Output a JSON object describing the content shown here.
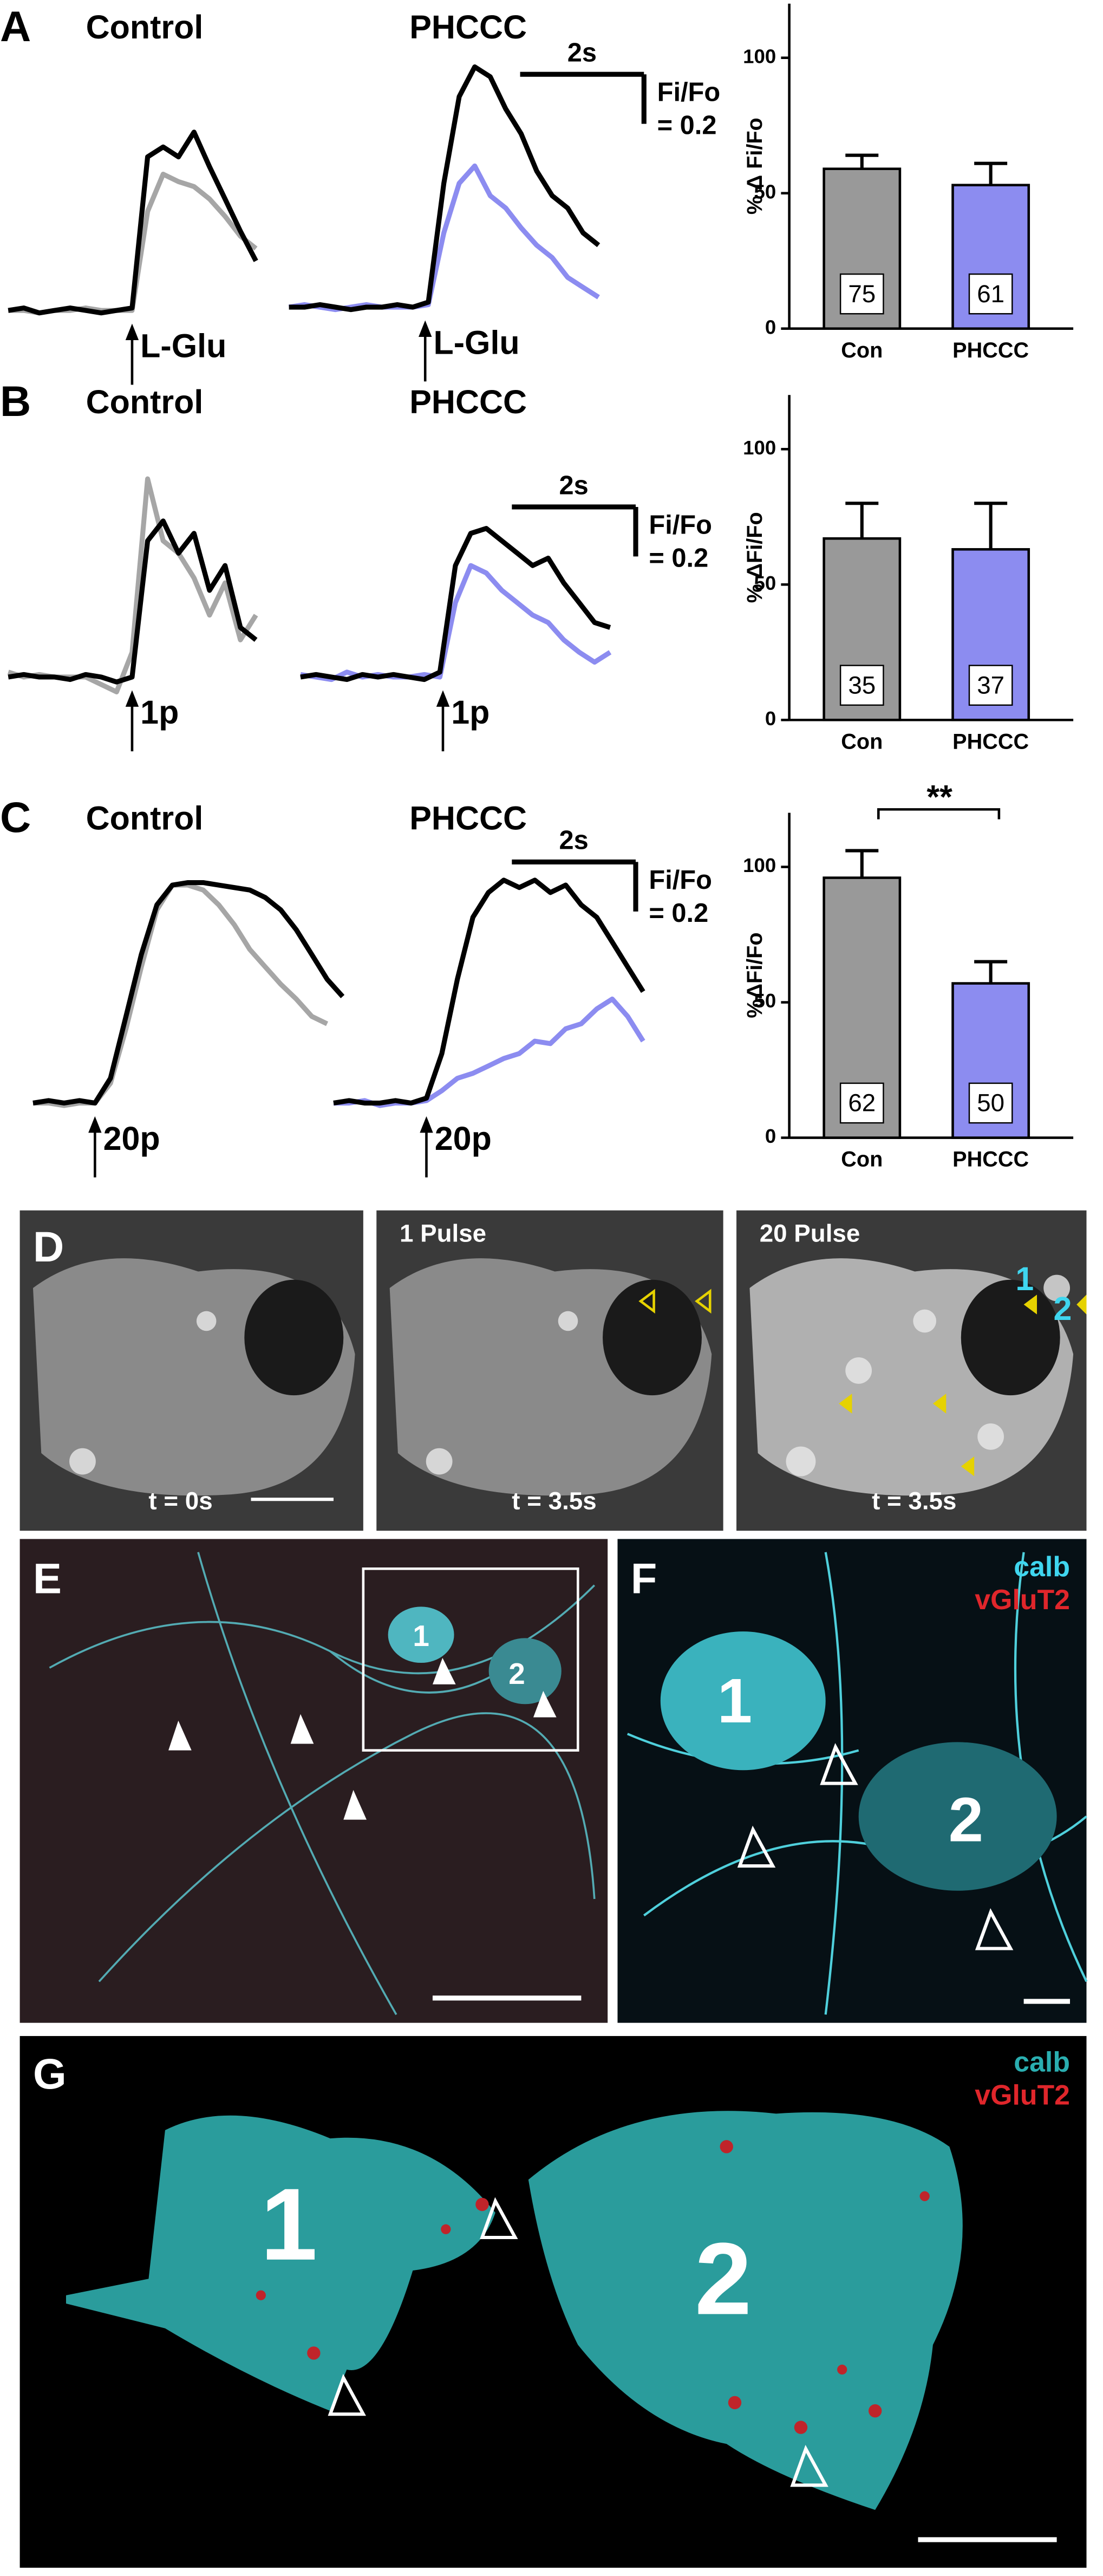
{
  "chart_data": [
    {
      "type": "line",
      "panel": "A",
      "title": "Control",
      "stimulus": {
        "t": 2.0,
        "label": "L-Glu"
      },
      "x": [
        0,
        0.25,
        0.5,
        0.75,
        1,
        1.25,
        1.5,
        1.75,
        2,
        2.25,
        2.5,
        2.75,
        3,
        3.25,
        3.5,
        3.75,
        4
      ],
      "series": [
        {
          "color": "#a6a6a6",
          "values": [
            0,
            0,
            -0.01,
            0,
            0,
            0.01,
            0,
            0,
            0,
            0.4,
            0.55,
            0.52,
            0.5,
            0.45,
            0.38,
            0.3,
            0.25
          ]
        },
        {
          "color": "#000000",
          "values": [
            0,
            0.01,
            -0.01,
            0,
            0.01,
            0,
            -0.01,
            0,
            0.01,
            0.62,
            0.66,
            0.62,
            0.72,
            0.58,
            0.45,
            0.32,
            0.2
          ]
        }
      ]
    },
    {
      "type": "line",
      "title": "PHCCC",
      "stimulus": {
        "t": 2.2,
        "label": "L-Glu"
      },
      "scalebar": {
        "x": 2,
        "x_label": "2s",
        "y": 0.2,
        "y_label": [
          "Fi/Fo",
          "= 0.2"
        ]
      },
      "x": [
        0,
        0.25,
        0.5,
        0.75,
        1,
        1.25,
        1.5,
        1.75,
        2,
        2.25,
        2.5,
        2.75,
        3,
        3.25,
        3.5,
        3.75,
        4,
        4.25,
        4.5,
        4.75,
        5
      ],
      "series": [
        {
          "color": "#8c8cf0",
          "values": [
            0,
            0.01,
            0,
            -0.01,
            0,
            0.01,
            0,
            0,
            0,
            0.01,
            0.3,
            0.5,
            0.57,
            0.45,
            0.4,
            0.32,
            0.25,
            0.2,
            0.12,
            0.08,
            0.04
          ]
        },
        {
          "color": "#000000",
          "values": [
            0,
            0,
            0.01,
            0,
            -0.01,
            0,
            0,
            0.01,
            0,
            0.02,
            0.5,
            0.85,
            0.97,
            0.93,
            0.8,
            0.7,
            0.55,
            0.45,
            0.4,
            0.3,
            0.25
          ]
        }
      ]
    },
    {
      "type": "bar",
      "ylabel": "% Δ Fi/Fo",
      "categories": [
        "Con",
        "PHCCC"
      ],
      "values": [
        59,
        53
      ],
      "errors": [
        5,
        8
      ],
      "n": [
        "75",
        "61"
      ],
      "colors": [
        "#999999",
        "#8c8cf0"
      ],
      "ylim": [
        0,
        120
      ],
      "yticks": [
        0,
        50,
        100
      ]
    },
    {
      "type": "line",
      "panel": "B",
      "title": "Control",
      "stimulus": {
        "t": 2.0,
        "label": "1p"
      },
      "x": [
        0,
        0.25,
        0.5,
        0.75,
        1,
        1.25,
        1.5,
        1.75,
        2,
        2.25,
        2.5,
        2.75,
        3,
        3.25,
        3.5,
        3.75,
        4
      ],
      "series": [
        {
          "color": "#a6a6a6",
          "values": [
            0.02,
            0,
            0.01,
            0,
            0,
            0,
            -0.03,
            -0.06,
            0.1,
            0.8,
            0.55,
            0.5,
            0.4,
            0.25,
            0.38,
            0.15,
            0.25
          ]
        },
        {
          "color": "#000000",
          "values": [
            0,
            0.01,
            0,
            0,
            -0.01,
            0.01,
            0,
            -0.02,
            0,
            0.55,
            0.63,
            0.5,
            0.58,
            0.35,
            0.45,
            0.2,
            0.15
          ]
        }
      ]
    },
    {
      "type": "line",
      "title": "PHCCC",
      "stimulus": {
        "t": 2.3,
        "label": "1p"
      },
      "scalebar": {
        "x": 2,
        "x_label": "2s",
        "y": 0.2,
        "y_label": [
          "Fi/Fo",
          "= 0.2"
        ]
      },
      "x": [
        0,
        0.25,
        0.5,
        0.75,
        1,
        1.25,
        1.5,
        1.75,
        2,
        2.25,
        2.5,
        2.75,
        3,
        3.25,
        3.5,
        3.75,
        4,
        4.25,
        4.5,
        4.75,
        5
      ],
      "series": [
        {
          "color": "#8c8cf0",
          "values": [
            0.01,
            0,
            -0.01,
            0.02,
            0,
            0.01,
            0,
            0,
            0.01,
            0,
            0.3,
            0.45,
            0.42,
            0.35,
            0.3,
            0.25,
            0.22,
            0.15,
            0.1,
            0.06,
            0.1
          ]
        },
        {
          "color": "#000000",
          "values": [
            0,
            0.01,
            0,
            -0.01,
            0.01,
            0,
            0.01,
            0,
            -0.01,
            0.02,
            0.45,
            0.58,
            0.6,
            0.55,
            0.5,
            0.45,
            0.48,
            0.38,
            0.3,
            0.22,
            0.2
          ]
        }
      ]
    },
    {
      "type": "bar",
      "ylabel": "%  ΔFi/Fo",
      "categories": [
        "Con",
        "PHCCC"
      ],
      "values": [
        67,
        63
      ],
      "errors": [
        13,
        17
      ],
      "n": [
        "35",
        "37"
      ],
      "colors": [
        "#999999",
        "#8c8cf0"
      ],
      "ylim": [
        0,
        120
      ],
      "yticks": [
        0,
        50,
        100
      ]
    },
    {
      "type": "line",
      "panel": "C",
      "title": "Control",
      "stimulus": {
        "t": 1.0,
        "label": "20p"
      },
      "x": [
        0,
        0.25,
        0.5,
        0.75,
        1,
        1.25,
        1.5,
        1.75,
        2,
        2.25,
        2.5,
        2.75,
        3,
        3.25,
        3.5,
        3.75,
        4,
        4.25,
        4.5,
        4.75,
        5
      ],
      "series": [
        {
          "color": "#a6a6a6",
          "values": [
            0,
            0,
            -0.01,
            0,
            0,
            0.08,
            0.3,
            0.55,
            0.78,
            0.88,
            0.88,
            0.86,
            0.8,
            0.72,
            0.62,
            0.55,
            0.48,
            0.42,
            0.35,
            0.32,
            null
          ]
        },
        {
          "color": "#000000",
          "values": [
            0,
            0.01,
            0,
            0.01,
            0,
            0.1,
            0.35,
            0.6,
            0.8,
            0.88,
            0.89,
            0.89,
            0.88,
            0.87,
            0.86,
            0.83,
            0.78,
            0.7,
            0.6,
            0.5,
            0.43
          ]
        }
      ]
    },
    {
      "type": "line",
      "title": "PHCCC",
      "stimulus": {
        "t": 1.5,
        "label": "20p"
      },
      "scalebar": {
        "x": 2,
        "x_label": "2s",
        "y": 0.2,
        "y_label": [
          "Fi/Fo",
          "= 0.2"
        ]
      },
      "x": [
        0,
        0.25,
        0.5,
        0.75,
        1,
        1.25,
        1.5,
        1.75,
        2,
        2.25,
        2.5,
        2.75,
        3,
        3.25,
        3.5,
        3.75,
        4,
        4.25,
        4.5,
        4.75,
        5
      ],
      "series": [
        {
          "color": "#8c8cf0",
          "values": [
            0,
            0,
            0.01,
            -0.01,
            0,
            0,
            0.01,
            0.05,
            0.1,
            0.12,
            0.15,
            0.18,
            0.2,
            0.25,
            0.24,
            0.3,
            0.32,
            0.38,
            0.42,
            0.35,
            0.25
          ]
        },
        {
          "color": "#000000",
          "values": [
            0,
            0.01,
            0,
            0,
            0.01,
            0,
            0.02,
            0.2,
            0.5,
            0.75,
            0.85,
            0.9,
            0.87,
            0.9,
            0.85,
            0.88,
            0.8,
            0.75,
            0.65,
            0.55,
            0.45
          ]
        }
      ]
    },
    {
      "type": "bar",
      "ylabel": "%ΔFi/Fo",
      "categories": [
        "Con",
        "PHCCC"
      ],
      "values": [
        96,
        57
      ],
      "errors": [
        10,
        8
      ],
      "n": [
        "62",
        "50"
      ],
      "colors": [
        "#999999",
        "#8c8cf0"
      ],
      "ylim": [
        0,
        120
      ],
      "yticks": [
        0,
        50,
        100
      ],
      "significance": "**"
    }
  ],
  "images": {
    "D": {
      "letter": "D",
      "tiles": [
        {
          "time": "t = 0s"
        },
        {
          "title": "1 Pulse",
          "time": "t = 3.5s"
        },
        {
          "title": "20 Pulse",
          "time": "t = 3.5s",
          "cells": [
            "1",
            "2"
          ]
        }
      ]
    },
    "E": {
      "letter": "E",
      "cells": [
        "1",
        "2"
      ]
    },
    "F": {
      "letter": "F",
      "legend": [
        "calb",
        "vGluT2"
      ],
      "cells": [
        "1",
        "2"
      ]
    },
    "G": {
      "letter": "G",
      "legend": [
        "calb",
        "vGluT2"
      ],
      "cells": [
        "1",
        "2"
      ]
    }
  }
}
